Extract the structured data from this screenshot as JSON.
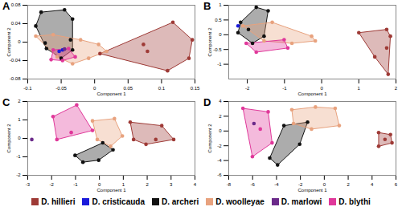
{
  "chart_data": [
    {
      "type": "scatter",
      "title": "A",
      "x_label": "Component 1",
      "y_label": "Component 2",
      "xlim": [
        -0.1,
        0.15
      ],
      "ylim": [
        -0.08,
        0.08
      ],
      "xticks": [
        -0.1,
        -0.05,
        0,
        0.05,
        0.1,
        0.15
      ],
      "yticks": [
        -0.08,
        -0.04,
        0,
        0.04,
        0.08
      ],
      "legend": "bottom",
      "series": [
        {
          "name": "D. hillieri",
          "color": "#9e3a36",
          "x": [
            0.008,
            0.073,
            0.117,
            0.146,
            0.141,
            0.109,
            0.079
          ],
          "y": [
            -0.025,
            -0.005,
            0.043,
            0.005,
            -0.035,
            -0.062,
            -0.02
          ]
        },
        {
          "name": "D. cristicauda",
          "color": "#1a1adb",
          "x": [
            -0.053,
            -0.048
          ],
          "y": [
            -0.02,
            -0.017
          ]
        },
        {
          "name": "D. archeri",
          "color": "#111111",
          "x": [
            -0.08,
            -0.045,
            -0.033,
            -0.036,
            -0.033,
            -0.05,
            -0.072,
            -0.088,
            -0.074
          ],
          "y": [
            0.065,
            0.07,
            0.05,
            0.005,
            -0.017,
            -0.035,
            -0.014,
            0.035,
            -0.002
          ]
        },
        {
          "name": "D. woolleyae",
          "color": "#e8a27e",
          "x": [
            -0.088,
            -0.062,
            -0.021,
            0.006,
            0.018,
            -0.009,
            -0.033,
            -0.056
          ],
          "y": [
            0.013,
            0.016,
            0.005,
            -0.005,
            -0.02,
            -0.035,
            -0.047,
            -0.032
          ]
        },
        {
          "name": "D. marlowi",
          "color": "#6b2a8a",
          "x": [
            -0.045
          ],
          "y": [
            -0.015
          ]
        },
        {
          "name": "D. blythi",
          "color": "#e0389a",
          "x": [
            -0.062,
            -0.039,
            -0.029,
            -0.048,
            -0.065
          ],
          "y": [
            -0.017,
            -0.014,
            -0.032,
            -0.04,
            -0.038
          ]
        }
      ]
    },
    {
      "type": "scatter",
      "title": "B",
      "x_label": "Component 1",
      "y_label": "Component 2",
      "xlim": [
        -2.5,
        2
      ],
      "ylim": [
        -1.5,
        1
      ],
      "xticks": [
        -2,
        -1,
        0,
        1,
        2
      ],
      "yticks": [
        -1,
        -0.5,
        0,
        0.5,
        1
      ],
      "legend": "bottom",
      "series": [
        {
          "name": "D. hillieri",
          "color": "#9e3a36",
          "x": [
            1.0,
            1.75,
            1.85,
            1.75,
            1.79,
            1.43
          ],
          "y": [
            0.07,
            0.18,
            -0.05,
            -0.45,
            -1.34,
            -0.75
          ]
        },
        {
          "name": "D. cristicauda",
          "color": "#1a1adb",
          "x": [
            -2.25
          ],
          "y": [
            0.3
          ]
        },
        {
          "name": "D. archeri",
          "color": "#111111",
          "x": [
            -2.18,
            -1.76,
            -1.44,
            -1.55,
            -1.86,
            -2.25,
            -1.97
          ],
          "y": [
            0.42,
            0.93,
            0.81,
            -0.05,
            -0.29,
            0.07,
            0.18
          ]
        },
        {
          "name": "D. woolleyae",
          "color": "#e8a27e",
          "x": [
            -2.12,
            -1.33,
            -0.27,
            -0.17,
            -0.8,
            -1.55
          ],
          "y": [
            0.3,
            0.42,
            -0.05,
            -0.21,
            -0.29,
            -0.21
          ]
        },
        {
          "name": "D. blythi",
          "color": "#e0389a",
          "x": [
            -2.03,
            -1.01,
            -0.91,
            -1.76
          ],
          "y": [
            -0.29,
            -0.17,
            -0.45,
            -0.59
          ]
        }
      ]
    },
    {
      "type": "scatter",
      "title": "C",
      "x_label": "Component 1",
      "y_label": "Component 2",
      "xlim": [
        -3,
        4
      ],
      "ylim": [
        -2,
        2
      ],
      "xticks": [
        -3,
        -2,
        -1,
        0,
        1,
        2,
        3,
        4
      ],
      "yticks": [
        -2,
        -1,
        0,
        1,
        2
      ],
      "legend": "bottom",
      "series": [
        {
          "name": "D. hillieri",
          "color": "#9e3a36",
          "x": [
            1.29,
            2.61,
            3.11,
            1.95,
            1.43,
            2.36
          ],
          "y": [
            0.88,
            0.69,
            -0.06,
            -0.32,
            -0.06,
            -0.06
          ]
        },
        {
          "name": "D. archeri",
          "color": "#111111",
          "x": [
            -1.02,
            0.14,
            0.57,
            -0.03,
            -0.69
          ],
          "y": [
            -0.92,
            -0.24,
            -0.62,
            -1.18,
            -1.29
          ]
        },
        {
          "name": "D. woolleyae",
          "color": "#e8a27e",
          "x": [
            -0.29,
            0.63,
            0.96,
            0.47,
            -0.09
          ],
          "y": [
            0.95,
            1.07,
            0.13,
            -0.43,
            -0.06
          ]
        },
        {
          "name": "D. marlowi",
          "color": "#6b2a8a",
          "x": [
            -2.83
          ],
          "y": [
            -0.06
          ]
        },
        {
          "name": "D. blythi",
          "color": "#e0389a",
          "x": [
            -1.94,
            -0.95,
            -0.29,
            -1.78,
            -1.18
          ],
          "y": [
            1.18,
            1.81,
            0.43,
            -0.06,
            0.32
          ]
        }
      ]
    },
    {
      "type": "scatter",
      "title": "D",
      "x_label": "Component 1",
      "y_label": "Component 2",
      "xlim": [
        -8,
        6
      ],
      "ylim": [
        -6,
        4
      ],
      "xticks": [
        -8,
        -6,
        -4,
        -2,
        0,
        2,
        4,
        6
      ],
      "yticks": [
        -6,
        -4,
        -2,
        0,
        2,
        4
      ],
      "legend": "bottom",
      "series": [
        {
          "name": "D. hillieri",
          "color": "#9e3a36",
          "x": [
            4.55,
            5.54,
            5.67,
            4.55,
            5.08
          ],
          "y": [
            -0.21,
            -0.49,
            -1.61,
            -2.07,
            -1.14
          ]
        },
        {
          "name": "D. archeri",
          "color": "#111111",
          "x": [
            -3.38,
            -1.4,
            -2.06,
            -3.91,
            -4.57
          ],
          "y": [
            0.73,
            1.2,
            -1.79,
            -4.6,
            -3.66
          ]
        },
        {
          "name": "D. woolleyae",
          "color": "#e8a27e",
          "x": [
            -2.72,
            -0.74,
            0.91,
            1.25,
            -1.07,
            -2.58
          ],
          "y": [
            2.88,
            3.25,
            3.07,
            0.73,
            0.26,
            1.01
          ]
        },
        {
          "name": "D. marlowi",
          "color": "#6b2a8a",
          "x": [
            -5.89
          ],
          "y": [
            1.01
          ]
        },
        {
          "name": "D. blythi",
          "color": "#e0389a",
          "x": [
            -6.81,
            -4.7,
            -4.37,
            -6.02,
            -5.36
          ],
          "y": [
            3.07,
            2.6,
            -1.61,
            -3.48,
            0.26
          ]
        }
      ]
    }
  ]
}
